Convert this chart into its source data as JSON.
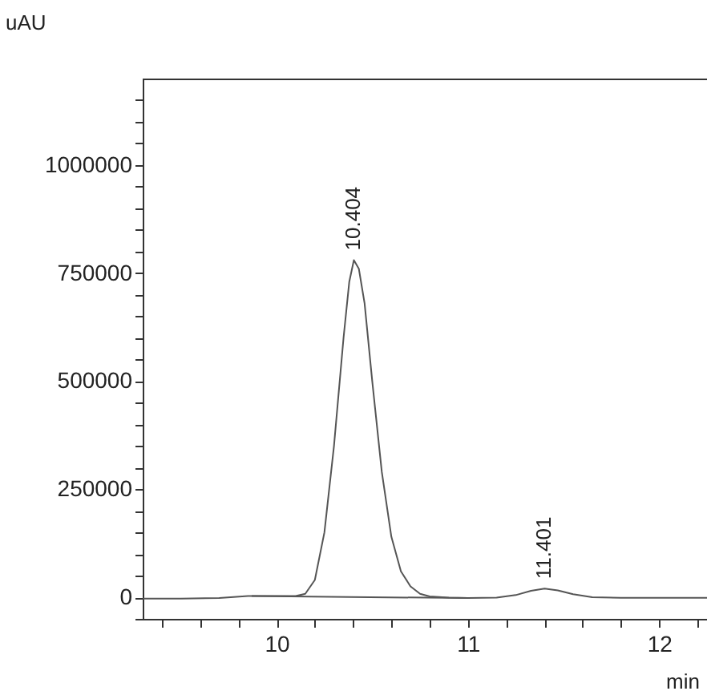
{
  "chart_data": {
    "type": "line",
    "xlabel": "min",
    "ylabel": "uAU",
    "xlim": [
      9.3,
      12.25
    ],
    "ylim": [
      -50000,
      1200000
    ],
    "xticks": [
      {
        "value": 9.4,
        "label": null
      },
      {
        "value": 9.6,
        "label": null
      },
      {
        "value": 9.8,
        "label": null
      },
      10,
      {
        "value": 10.2,
        "label": null
      },
      {
        "value": 10.4,
        "label": null
      },
      {
        "value": 10.6,
        "label": null
      },
      {
        "value": 10.8,
        "label": null
      },
      11,
      {
        "value": 11.2,
        "label": null
      },
      {
        "value": 11.4,
        "label": null
      },
      {
        "value": 11.6,
        "label": null
      },
      {
        "value": 11.8,
        "label": null
      },
      12,
      {
        "value": 12.2,
        "label": null
      }
    ],
    "yticks": [
      {
        "value": -50000,
        "label": null
      },
      0,
      {
        "value": 50000,
        "label": null
      },
      {
        "value": 100000,
        "label": null
      },
      {
        "value": 150000,
        "label": null
      },
      {
        "value": 200000,
        "label": null
      },
      250000,
      {
        "value": 300000,
        "label": null
      },
      {
        "value": 350000,
        "label": null
      },
      {
        "value": 400000,
        "label": null
      },
      {
        "value": 450000,
        "label": null
      },
      500000,
      {
        "value": 550000,
        "label": null
      },
      {
        "value": 600000,
        "label": null
      },
      {
        "value": 650000,
        "label": null
      },
      {
        "value": 700000,
        "label": null
      },
      750000,
      {
        "value": 800000,
        "label": null
      },
      {
        "value": 850000,
        "label": null
      },
      {
        "value": 900000,
        "label": null
      },
      {
        "value": 950000,
        "label": null
      },
      1000000,
      {
        "value": 1050000,
        "label": null
      },
      {
        "value": 1100000,
        "label": null
      },
      {
        "value": 1150000,
        "label": null
      }
    ],
    "series": [
      {
        "color": "#555555",
        "x": [
          9.3,
          9.5,
          9.7,
          9.85,
          10.0,
          10.1,
          10.15,
          10.2,
          10.25,
          10.3,
          10.35,
          10.38,
          10.404,
          10.43,
          10.46,
          10.5,
          10.55,
          10.6,
          10.65,
          10.7,
          10.75,
          10.8,
          10.9,
          11.0,
          11.15,
          11.25,
          11.33,
          11.401,
          11.47,
          11.55,
          11.65,
          11.8,
          12.25
        ],
        "values": [
          -3000,
          -3000,
          -2000,
          3000,
          3000,
          3000,
          8000,
          40000,
          150000,
          350000,
          600000,
          730000,
          780000,
          760000,
          680000,
          500000,
          290000,
          140000,
          60000,
          25000,
          8000,
          2000,
          -1000,
          -2000,
          -1000,
          5000,
          15000,
          20000,
          16000,
          7000,
          0,
          -1500,
          -1500
        ]
      },
      {
        "color": "#555555",
        "x": [
          9.87,
          11.0
        ],
        "values": [
          3000,
          -2000
        ]
      }
    ],
    "annotations": [
      {
        "text": "10.404",
        "x": 10.404,
        "y": 780000
      },
      {
        "text": "11.401",
        "x": 11.401,
        "y": 20000
      }
    ]
  }
}
